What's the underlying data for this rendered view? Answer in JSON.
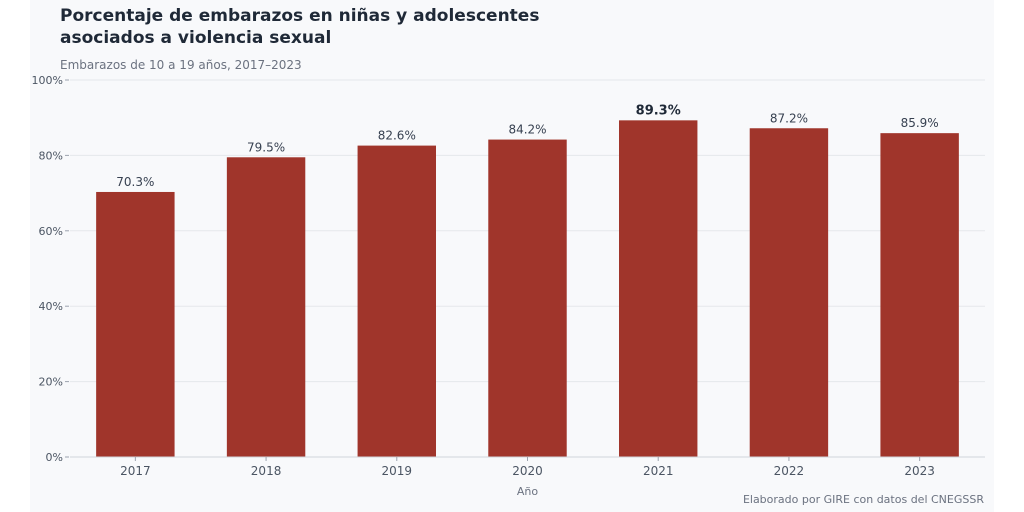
{
  "chart_data": {
    "type": "bar",
    "title": "Porcentaje de embarazos en niñas y adolescentes asociados a violencia sexual",
    "subtitle": "Embarazos de 10 a 19 años, 2017–2023",
    "xlabel": "Año",
    "ylabel": "",
    "categories": [
      "2017",
      "2018",
      "2019",
      "2020",
      "2021",
      "2022",
      "2023"
    ],
    "values": [
      70.3,
      79.5,
      82.6,
      84.2,
      89.3,
      87.2,
      85.9
    ],
    "value_labels": [
      "70.3%",
      "79.5%",
      "82.6%",
      "84.2%",
      "89.3%",
      "87.2%",
      "85.9%"
    ],
    "highlight_index": 4,
    "ylim": [
      0,
      100
    ],
    "yticks": [
      0,
      20,
      40,
      60,
      80,
      100
    ],
    "ytick_labels": [
      "0%",
      "20%",
      "40%",
      "60%",
      "80%",
      "100%"
    ],
    "grid": true,
    "bar_color": "#a0352b",
    "source": "Elaborado por GIRE con datos del CNEGSSR"
  }
}
